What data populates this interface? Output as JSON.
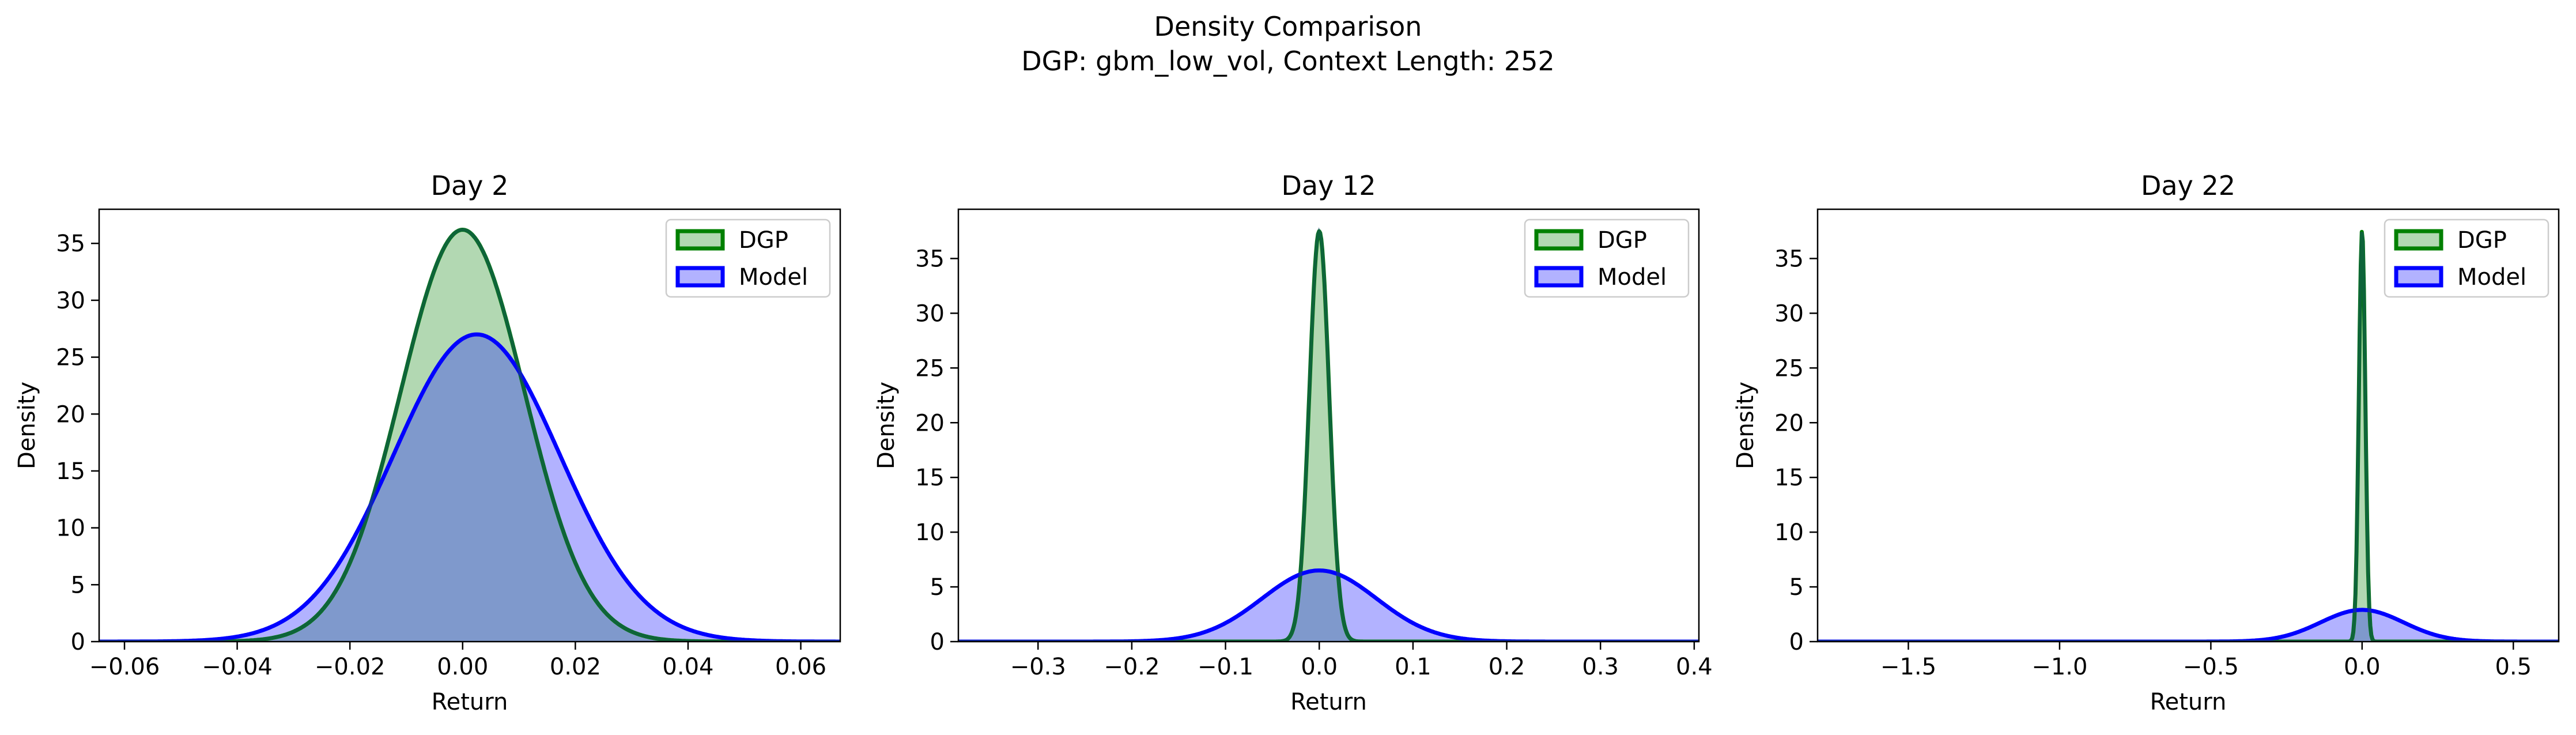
{
  "figure": {
    "title": "Density Comparison",
    "subtitle": "DGP: gbm_low_vol, Context Length: 252"
  },
  "colors": {
    "dgp_line": "#008000",
    "dgp_fill": "#b2d8b2",
    "model_line": "#0000ff",
    "model_fill": "#b2b2ff",
    "overlap_fill": "#7f99cc"
  },
  "chart_data": [
    {
      "type": "area",
      "title": "Day 2",
      "xlabel": "Return",
      "ylabel": "Density",
      "xlim": [
        -0.0645,
        0.067
      ],
      "ylim": [
        0,
        38
      ],
      "xticks": [
        -0.06,
        -0.04,
        -0.02,
        0.0,
        0.02,
        0.04,
        0.06
      ],
      "xtick_labels": [
        "−0.06",
        "−0.04",
        "−0.02",
        "0.00",
        "0.02",
        "0.04",
        "0.06"
      ],
      "yticks": [
        0,
        5,
        10,
        15,
        20,
        25,
        30,
        35
      ],
      "ytick_labels": [
        "0",
        "5",
        "10",
        "15",
        "20",
        "25",
        "30",
        "35"
      ],
      "legend_position": "top-right",
      "series": [
        {
          "name": "DGP",
          "peak_x": 0.0,
          "peak_density": 36.2,
          "std": 0.011
        },
        {
          "name": "Model",
          "peak_x": 0.0025,
          "peak_density": 27.0,
          "std": 0.0148
        }
      ]
    },
    {
      "type": "area",
      "title": "Day 12",
      "xlabel": "Return",
      "ylabel": "Density",
      "xlim": [
        -0.385,
        0.405
      ],
      "ylim": [
        0,
        39.5
      ],
      "xticks": [
        -0.3,
        -0.2,
        -0.1,
        0.0,
        0.1,
        0.2,
        0.3,
        0.4
      ],
      "xtick_labels": [
        "−0.3",
        "−0.2",
        "−0.1",
        "0.0",
        "0.1",
        "0.2",
        "0.3",
        "0.4"
      ],
      "yticks": [
        0,
        5,
        10,
        15,
        20,
        25,
        30,
        35
      ],
      "ytick_labels": [
        "0",
        "5",
        "10",
        "15",
        "20",
        "25",
        "30",
        "35"
      ],
      "legend_position": "top-right",
      "series": [
        {
          "name": "DGP",
          "peak_x": 0.0,
          "peak_density": 37.5,
          "std": 0.0106
        },
        {
          "name": "Model",
          "peak_x": 0.0,
          "peak_density": 6.5,
          "std": 0.061
        }
      ]
    },
    {
      "type": "area",
      "title": "Day 22",
      "xlabel": "Return",
      "ylabel": "Density",
      "xlim": [
        -1.8,
        0.65
      ],
      "ylim": [
        0,
        39.5
      ],
      "xticks": [
        -1.5,
        -1.0,
        -0.5,
        0.0,
        0.5
      ],
      "xtick_labels": [
        "−1.5",
        "−1.0",
        "−0.5",
        "0.0",
        "0.5"
      ],
      "yticks": [
        0,
        5,
        10,
        15,
        20,
        25,
        30,
        35
      ],
      "ytick_labels": [
        "0",
        "5",
        "10",
        "15",
        "20",
        "25",
        "30",
        "35"
      ],
      "legend_position": "top-right",
      "series": [
        {
          "name": "DGP",
          "peak_x": 0.0,
          "peak_density": 37.6,
          "std": 0.0106
        },
        {
          "name": "Model",
          "peak_x": 0.0,
          "peak_density": 2.9,
          "std": 0.137
        }
      ]
    }
  ]
}
